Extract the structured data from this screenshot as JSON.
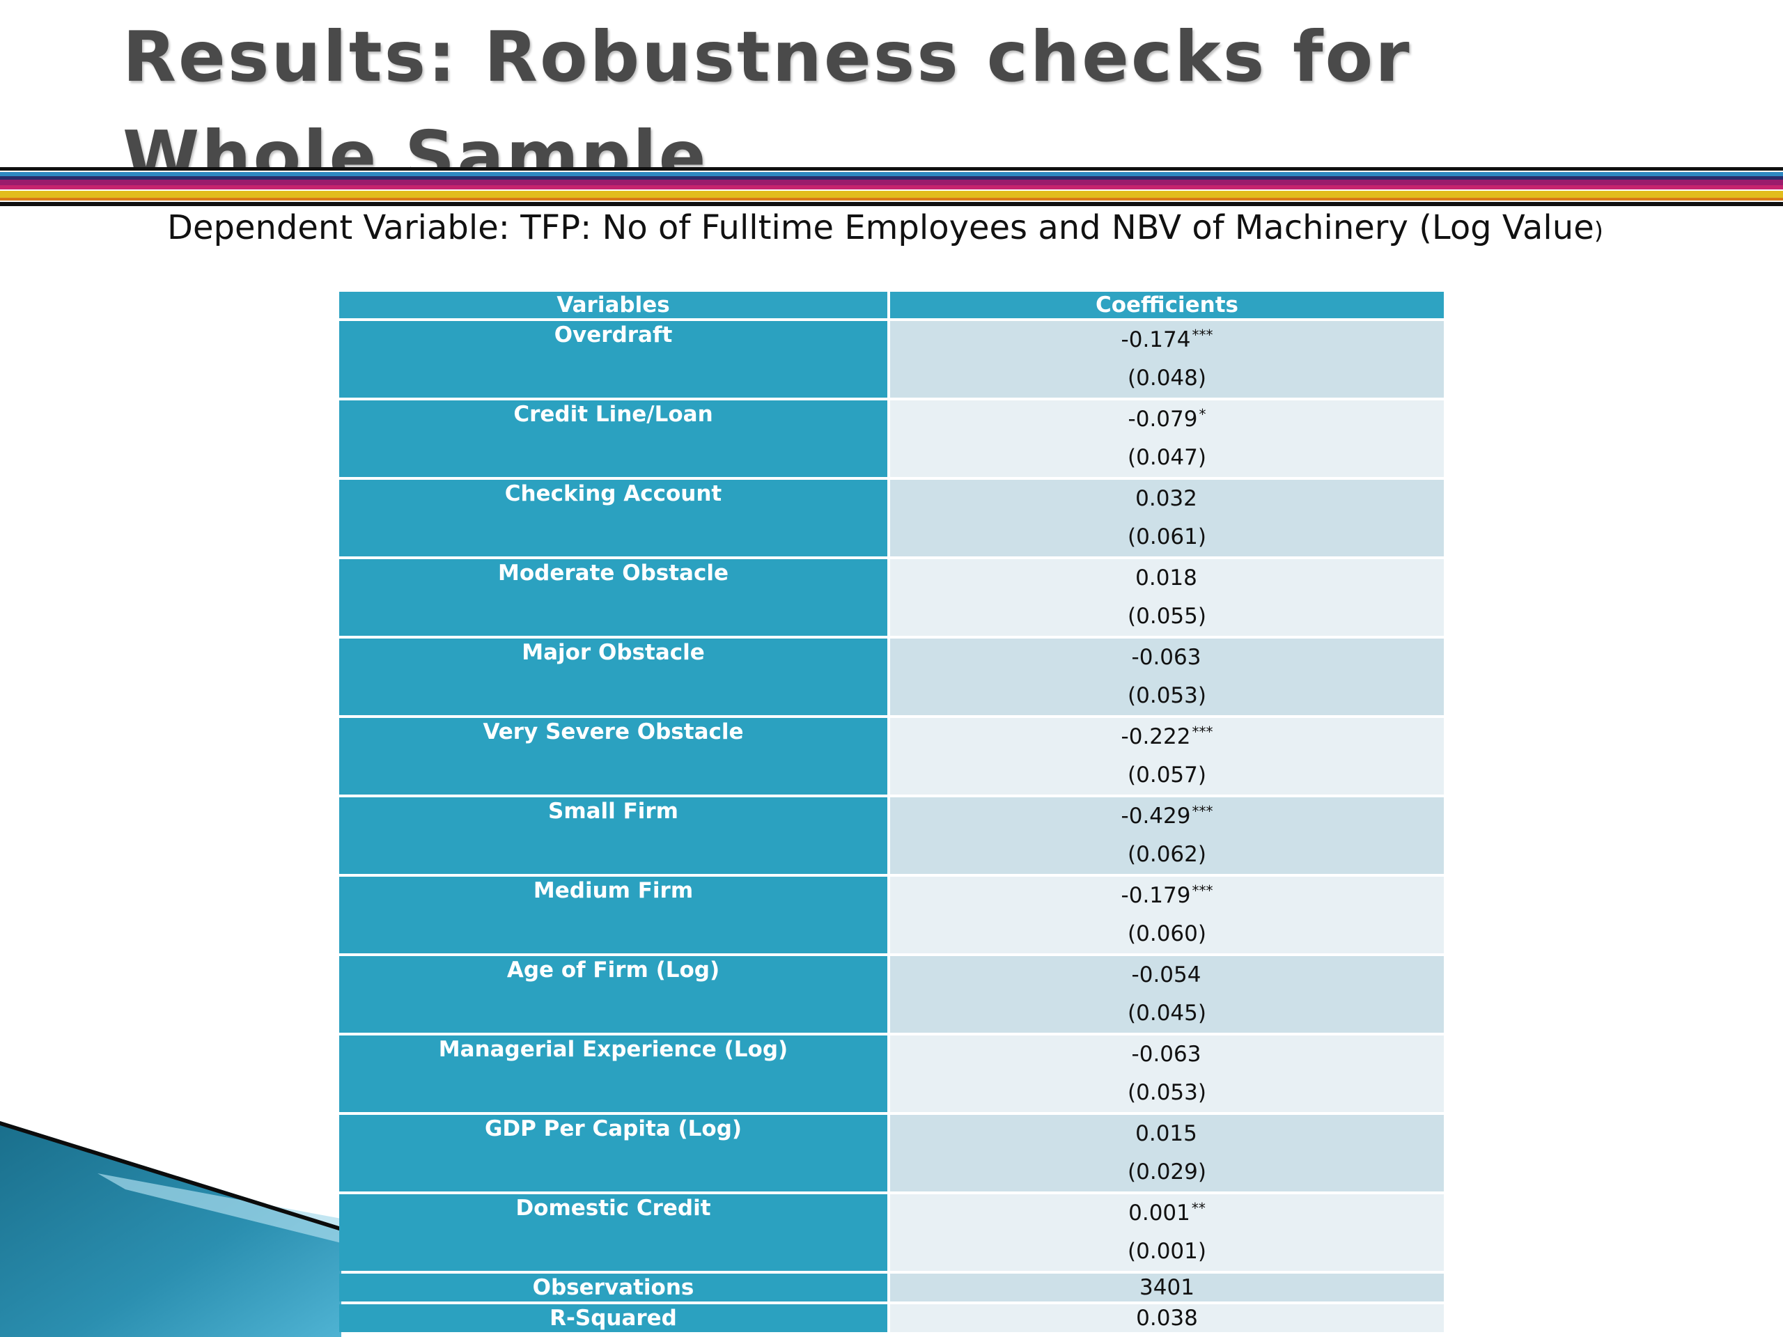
{
  "slide": {
    "title": "Results: Robustness checks for Whole Sample",
    "subtitle_main": "Dependent Variable: TFP: No of Fulltime Employees and NBV of Machinery (Log Value",
    "subtitle_tail": ")"
  },
  "table": {
    "headers": [
      "Variables",
      "Coefficients"
    ],
    "rows": [
      {
        "variable": "Overdraft",
        "coef": "-0.174",
        "stars": "***",
        "se": "(0.048)"
      },
      {
        "variable": "Credit Line/Loan",
        "coef": "-0.079",
        "stars": "*",
        "se": "(0.047)"
      },
      {
        "variable": "Checking Account",
        "coef": "0.032",
        "stars": "",
        "se": "(0.061)"
      },
      {
        "variable": "Moderate Obstacle",
        "coef": "0.018",
        "stars": "",
        "se": "(0.055)"
      },
      {
        "variable": "Major Obstacle",
        "coef": "-0.063",
        "stars": "",
        "se": "(0.053)"
      },
      {
        "variable": "Very Severe Obstacle",
        "coef": "-0.222",
        "stars": "***",
        "se": "(0.057)"
      },
      {
        "variable": "Small Firm",
        "coef": "-0.429",
        "stars": "***",
        "se": "(0.062)"
      },
      {
        "variable": "Medium Firm",
        "coef": "-0.179",
        "stars": "***",
        "se": "(0.060)"
      },
      {
        "variable": "Age of Firm (Log)",
        "coef": "-0.054",
        "stars": "",
        "se": "(0.045)"
      },
      {
        "variable": "Managerial Experience (Log)",
        "coef": "-0.063",
        "stars": "",
        "se": "(0.053)"
      },
      {
        "variable": "GDP Per Capita (Log)",
        "coef": "0.015",
        "stars": "",
        "se": "(0.029)"
      },
      {
        "variable": "Domestic Credit",
        "coef": "0.001",
        "stars": "**",
        "se": "(0.001)"
      }
    ],
    "stats": [
      {
        "variable": "Observations",
        "value": "3401"
      },
      {
        "variable": "R-Squared",
        "value": "0.038"
      }
    ]
  },
  "colors": {
    "title_text": "#4a4a4a",
    "header_bg": "#2ea3c2",
    "variable_cell_bg": "#2ba1c0",
    "coef_cell_shade_a": "#cde0e8",
    "coef_cell_shade_b": "#e8f0f4",
    "band_gold": "#e2bd1c",
    "band_magenta": "#9b1c6c",
    "band_blue": "#2e88c2"
  }
}
